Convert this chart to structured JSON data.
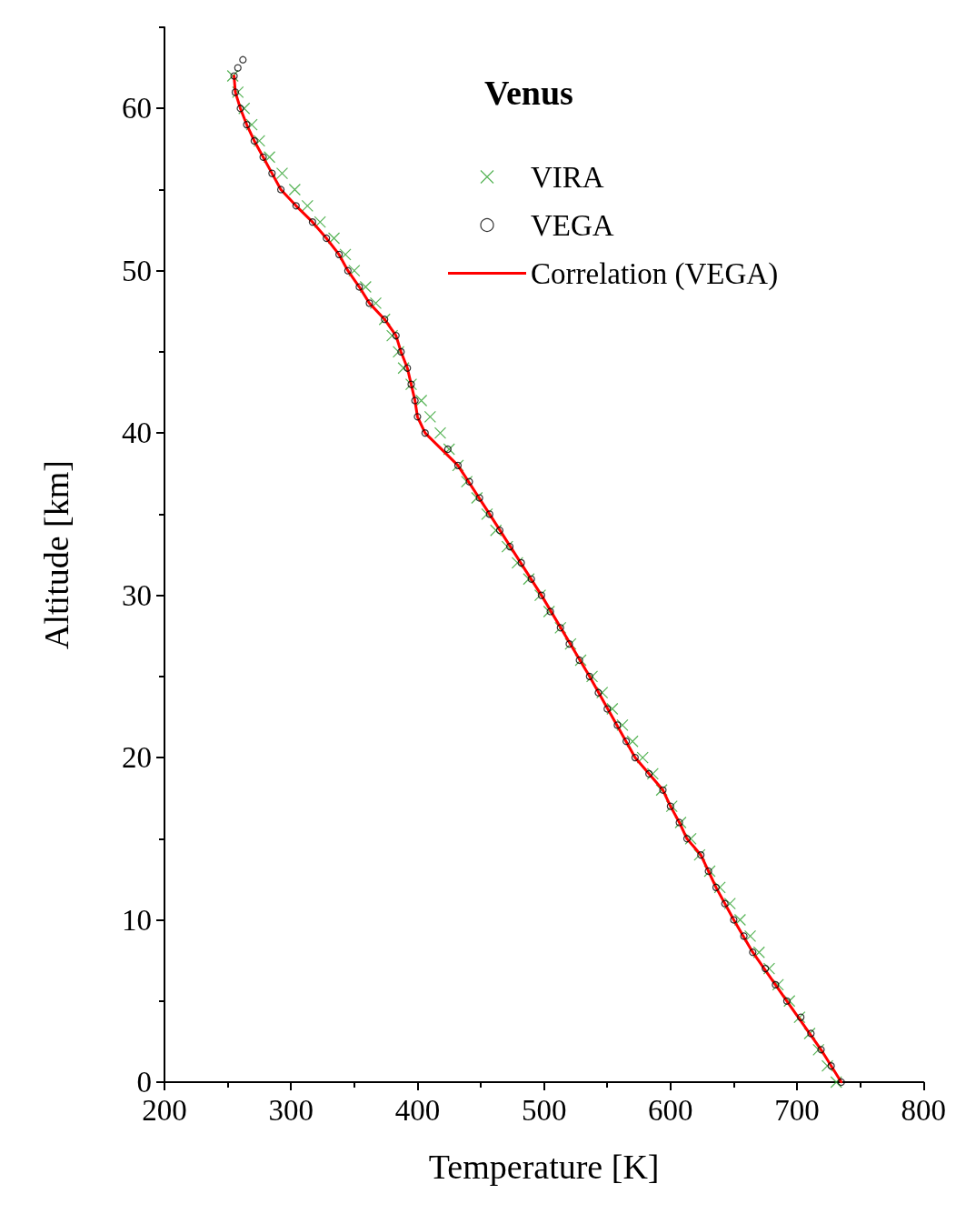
{
  "chart_data": {
    "type": "scatter",
    "title": "Venus",
    "xlabel": "Temperature [K]",
    "ylabel": "Altitude [km]",
    "xlim": [
      200,
      800
    ],
    "xticks": [
      200,
      300,
      400,
      500,
      600,
      700,
      800
    ],
    "ylim": [
      0,
      65
    ],
    "yticks": [
      0,
      10,
      20,
      30,
      40,
      50,
      60
    ],
    "grid": false,
    "legend": "top right",
    "series": [
      {
        "name": "VIRA",
        "marker": "cross",
        "color": "#2ca02c",
        "x": [
          731,
          724,
          717,
          710,
          702,
          694,
          685,
          678,
          670,
          663,
          655,
          647,
          639,
          631,
          623,
          616,
          608,
          601,
          593,
          586,
          578,
          570,
          562,
          554,
          546,
          538,
          529,
          521,
          513,
          504,
          497,
          488,
          479,
          471,
          462,
          455,
          447,
          439,
          432,
          425,
          418,
          410,
          403,
          395,
          389,
          385,
          380,
          374,
          367,
          359,
          350,
          343,
          334,
          323,
          313,
          303,
          293,
          283,
          275,
          269,
          263,
          258,
          254
        ],
        "values": [
          0,
          1,
          2,
          3,
          4,
          5,
          6,
          7,
          8,
          9,
          10,
          11,
          12,
          13,
          14,
          15,
          16,
          17,
          18,
          19,
          20,
          21,
          22,
          23,
          24,
          25,
          26,
          27,
          28,
          29,
          30,
          31,
          32,
          33,
          34,
          35,
          36,
          37,
          38,
          39,
          40,
          41,
          42,
          43,
          44,
          45,
          46,
          47,
          48,
          49,
          50,
          51,
          52,
          53,
          54,
          55,
          56,
          57,
          58,
          59,
          60,
          61,
          62
        ]
      },
      {
        "name": "VEGA",
        "marker": "circle",
        "color": "#000000",
        "x": [
          735,
          727,
          719,
          711,
          703,
          692,
          683,
          675,
          665,
          658,
          650,
          643,
          636,
          630,
          624,
          613,
          607,
          600,
          594,
          583,
          572,
          565,
          558,
          550,
          543,
          536,
          528,
          520,
          513,
          505,
          498,
          490,
          482,
          473,
          465,
          457,
          449,
          441,
          432,
          424,
          406,
          400,
          398,
          395,
          392,
          387,
          383,
          374,
          362,
          354,
          345,
          338,
          328,
          317,
          304,
          292,
          285,
          278,
          271,
          265,
          260,
          256,
          255,
          258,
          262
        ],
        "values": [
          0,
          1,
          2,
          3,
          4,
          5,
          6,
          7,
          8,
          9,
          10,
          11,
          12,
          13,
          14,
          15,
          16,
          17,
          18,
          19,
          20,
          21,
          22,
          23,
          24,
          25,
          26,
          27,
          28,
          29,
          30,
          31,
          32,
          33,
          34,
          35,
          36,
          37,
          38,
          39,
          40,
          41,
          42,
          43,
          44,
          45,
          46,
          47,
          48,
          49,
          50,
          51,
          52,
          53,
          54,
          55,
          56,
          57,
          58,
          59,
          60,
          61,
          62,
          62.5,
          63
        ]
      },
      {
        "name": "Correlation (VEGA)",
        "type": "line",
        "marker": "none",
        "color": "#ff0000",
        "x": [
          735,
          719,
          692,
          665,
          650,
          636,
          624,
          613,
          607,
          600,
          594,
          572,
          536,
          498,
          457,
          432,
          406,
          400,
          398,
          395,
          392,
          387,
          383,
          374,
          362,
          354,
          345,
          338,
          328,
          317,
          304,
          292,
          285,
          278,
          271,
          265,
          260,
          256,
          255
        ],
        "values": [
          0,
          2,
          5,
          8,
          10,
          12,
          14,
          15,
          16,
          17,
          18,
          20,
          25,
          30,
          35,
          38,
          40,
          41,
          42,
          43,
          44,
          45,
          46,
          47,
          48,
          49,
          50,
          51,
          52,
          53,
          54,
          55,
          56,
          57,
          58,
          59,
          60,
          61,
          62
        ]
      }
    ]
  }
}
